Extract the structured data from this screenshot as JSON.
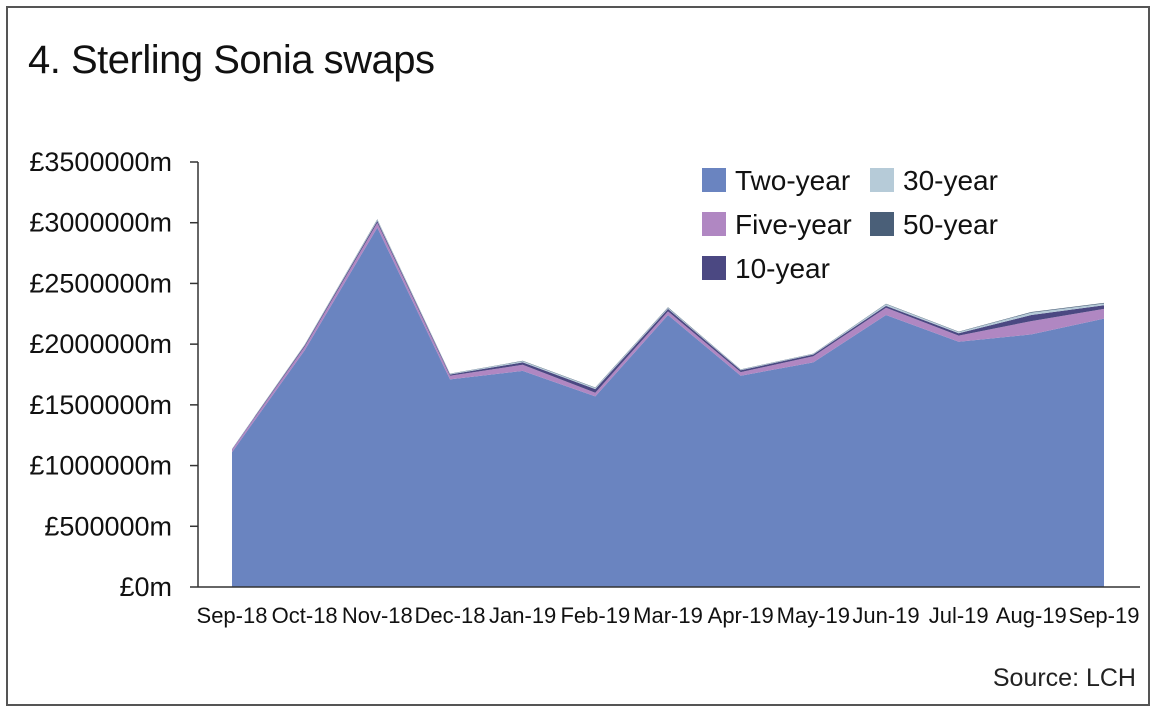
{
  "title": "4. Sterling Sonia swaps",
  "source": "Source: LCH",
  "chart_data": {
    "type": "area",
    "stacked": true,
    "title": "4. Sterling Sonia swaps",
    "xlabel": "",
    "ylabel": "",
    "categories": [
      "Sep-18",
      "Oct-18",
      "Nov-18",
      "Dec-18",
      "Jan-19",
      "Feb-19",
      "Mar-19",
      "Apr-19",
      "May-19",
      "Jun-19",
      "Jul-19",
      "Aug-19",
      "Sep-19"
    ],
    "ylim": [
      0,
      3500000
    ],
    "yticks": [
      0,
      500000,
      1000000,
      1500000,
      2000000,
      2500000,
      3000000,
      3500000
    ],
    "ytick_labels": [
      "£0m",
      "£500000m",
      "£1000000m",
      "£1500000m",
      "£2000000m",
      "£2500000m",
      "£3000000m",
      "£3500000m"
    ],
    "grid": false,
    "legend_position": "top-right",
    "series": [
      {
        "name": "Two-year",
        "color": "#6a84c0",
        "values": [
          1110000,
          1950000,
          2960000,
          1710000,
          1780000,
          1570000,
          2240000,
          1740000,
          1850000,
          2240000,
          2020000,
          2080000,
          2210000
        ]
      },
      {
        "name": "Five-year",
        "color": "#b087c2",
        "values": [
          20000,
          30000,
          40000,
          30000,
          50000,
          30000,
          30000,
          30000,
          50000,
          60000,
          50000,
          110000,
          80000
        ]
      },
      {
        "name": "10-year",
        "color": "#4b4882",
        "values": [
          5000,
          10000,
          15000,
          10000,
          20000,
          30000,
          20000,
          15000,
          15000,
          15000,
          20000,
          50000,
          30000
        ]
      },
      {
        "name": "30-year",
        "color": "#b6cbd8",
        "values": [
          3000,
          5000,
          10000,
          5000,
          10000,
          10000,
          10000,
          5000,
          5000,
          15000,
          10000,
          20000,
          15000
        ]
      },
      {
        "name": "50-year",
        "color": "#4a5f78",
        "values": [
          1000,
          2000,
          3000,
          2000,
          3000,
          3000,
          3000,
          2000,
          2000,
          3000,
          3000,
          5000,
          5000
        ]
      }
    ],
    "legend": [
      {
        "label": "Two-year",
        "color": "#6a84c0"
      },
      {
        "label": "30-year",
        "color": "#b6cbd8"
      },
      {
        "label": "Five-year",
        "color": "#b087c2"
      },
      {
        "label": "50-year",
        "color": "#4a5f78"
      },
      {
        "label": "10-year",
        "color": "#4b4882"
      }
    ]
  }
}
